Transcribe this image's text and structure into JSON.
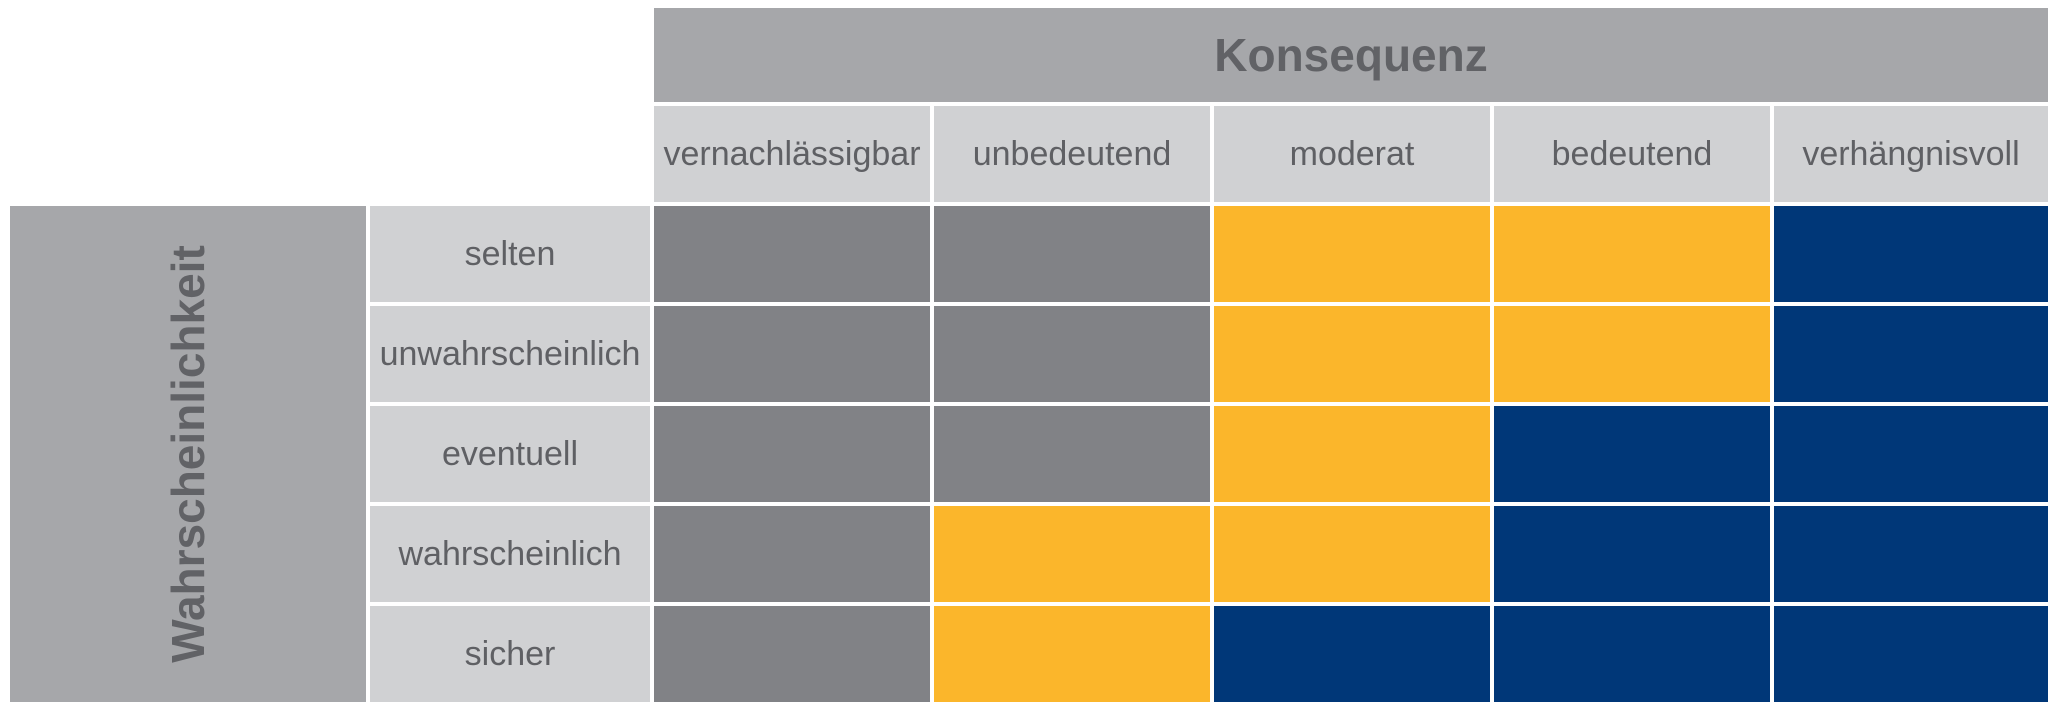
{
  "colors": {
    "low": "#818286",
    "medium": "#fbb62b",
    "high": "#003778",
    "header_dark": "#a6a7aa",
    "header_light": "#d0d1d3",
    "text": "#5f6064"
  },
  "matrix": {
    "column_axis_title": "Konsequenz",
    "row_axis_title": "Wahrscheinlichkeit",
    "columns": [
      "vernachlässigbar",
      "unbedeutend",
      "moderat",
      "bedeutend",
      "verhängnisvoll"
    ],
    "rows": [
      {
        "label": "selten",
        "levels": [
          "low",
          "low",
          "medium",
          "medium",
          "high"
        ]
      },
      {
        "label": "unwahrscheinlich",
        "levels": [
          "low",
          "low",
          "medium",
          "medium",
          "high"
        ]
      },
      {
        "label": "eventuell",
        "levels": [
          "low",
          "low",
          "medium",
          "high",
          "high"
        ]
      },
      {
        "label": "wahrscheinlich",
        "levels": [
          "low",
          "medium",
          "medium",
          "high",
          "high"
        ]
      },
      {
        "label": "sicher",
        "levels": [
          "low",
          "medium",
          "high",
          "high",
          "high"
        ]
      }
    ]
  }
}
